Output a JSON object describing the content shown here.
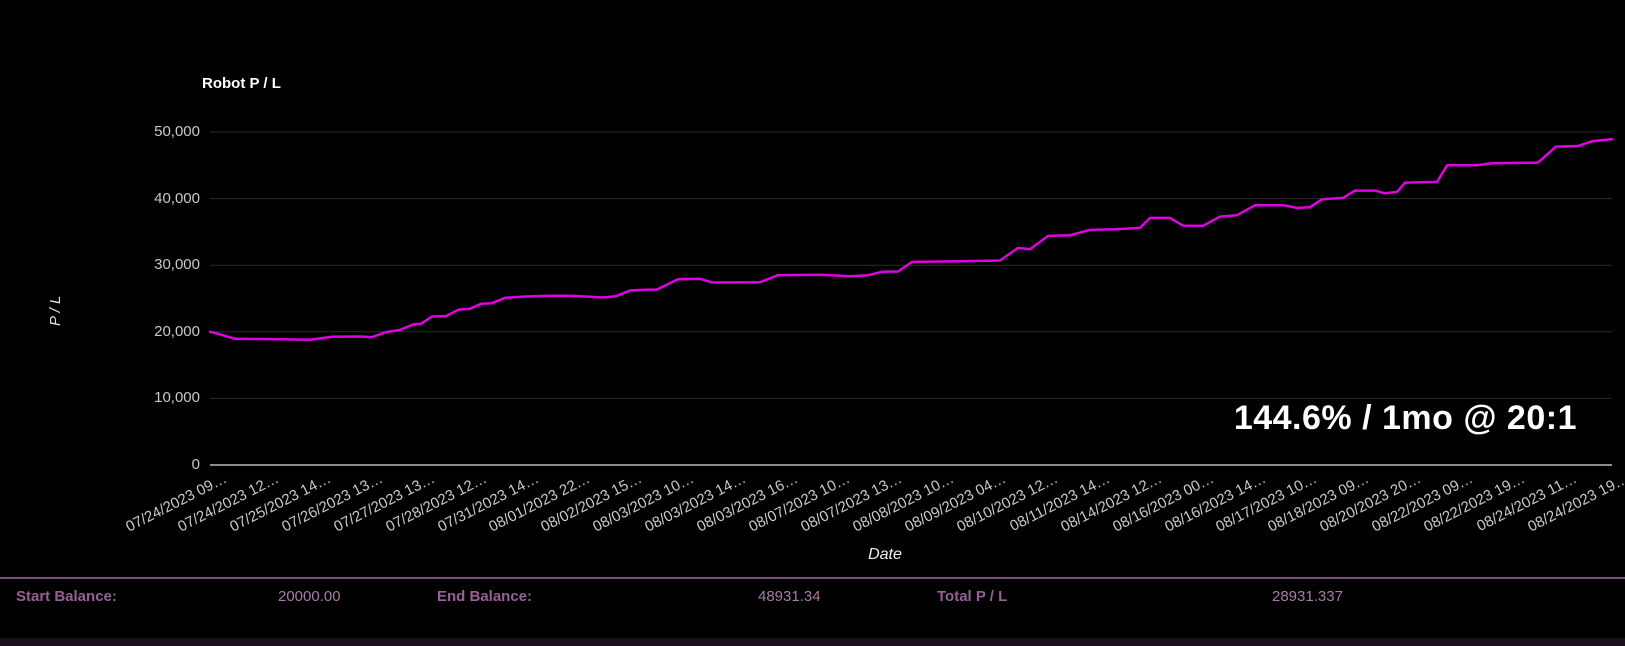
{
  "chart": {
    "title": "Robot P / L",
    "ylabel": "P / L",
    "xlabel": "Date",
    "annotation": "144.6% / 1mo @ 20:1"
  },
  "chart_data": {
    "type": "line",
    "title": "Robot P / L",
    "xlabel": "Date",
    "ylabel": "P / L",
    "annotation": "144.6% / 1mo @ 20:1",
    "grid": true,
    "legend": false,
    "ylim": [
      0,
      53300
    ],
    "yticks": [
      0,
      10000,
      20000,
      30000,
      40000,
      50000
    ],
    "ytick_labels": [
      "0",
      "10,000",
      "20,000",
      "30,000",
      "40,000",
      "50,000"
    ],
    "xtick_labels": [
      "07/24/2023 09…",
      "07/24/2023 12…",
      "07/25/2023 14…",
      "07/26/2023 13…",
      "07/27/2023 13…",
      "07/28/2023 12…",
      "07/31/2023 14…",
      "08/01/2023 22…",
      "08/02/2023 15…",
      "08/03/2023 10…",
      "08/03/2023 14…",
      "08/03/2023 16…",
      "08/07/2023 10…",
      "08/07/2023 13…",
      "08/08/2023 10…",
      "08/09/2023 04…",
      "08/10/2023 12…",
      "08/11/2023 14…",
      "08/14/2023 12…",
      "08/16/2023 00…",
      "08/16/2023 14…",
      "08/17/2023 10…",
      "08/18/2023 09…",
      "08/20/2023 20…",
      "08/22/2023 09…",
      "08/22/2023 19…",
      "08/24/2023 11…",
      "08/24/2023 19…"
    ],
    "series": [
      {
        "name": "Robot P / L",
        "color": "#e100e1",
        "points": [
          [
            0.0,
            20000
          ],
          [
            0.0057,
            19700
          ],
          [
            0.0178,
            18950
          ],
          [
            0.0414,
            18900
          ],
          [
            0.0713,
            18800
          ],
          [
            0.087,
            19250
          ],
          [
            0.1056,
            19300
          ],
          [
            0.1156,
            19200
          ],
          [
            0.1255,
            19950
          ],
          [
            0.1355,
            20300
          ],
          [
            0.1448,
            21100
          ],
          [
            0.1505,
            21200
          ],
          [
            0.1583,
            22300
          ],
          [
            0.1683,
            22350
          ],
          [
            0.1769,
            23300
          ],
          [
            0.1854,
            23450
          ],
          [
            0.1933,
            24200
          ],
          [
            0.2011,
            24300
          ],
          [
            0.2104,
            25100
          ],
          [
            0.2247,
            25300
          ],
          [
            0.2425,
            25400
          ],
          [
            0.2568,
            25400
          ],
          [
            0.2711,
            25250
          ],
          [
            0.2803,
            25150
          ],
          [
            0.2896,
            25350
          ],
          [
            0.2996,
            26200
          ],
          [
            0.3103,
            26300
          ],
          [
            0.3188,
            26350
          ],
          [
            0.3338,
            27900
          ],
          [
            0.3495,
            27950
          ],
          [
            0.3581,
            27400
          ],
          [
            0.3923,
            27450
          ],
          [
            0.4051,
            28500
          ],
          [
            0.4351,
            28550
          ],
          [
            0.4565,
            28350
          ],
          [
            0.4693,
            28500
          ],
          [
            0.4793,
            29000
          ],
          [
            0.4907,
            29050
          ],
          [
            0.5007,
            30500
          ],
          [
            0.5349,
            30600
          ],
          [
            0.5635,
            30700
          ],
          [
            0.5763,
            32600
          ],
          [
            0.5849,
            32400
          ],
          [
            0.5977,
            34400
          ],
          [
            0.6134,
            34500
          ],
          [
            0.6277,
            35300
          ],
          [
            0.6455,
            35400
          ],
          [
            0.6633,
            35600
          ],
          [
            0.6705,
            37100
          ],
          [
            0.6847,
            37100
          ],
          [
            0.694,
            35950
          ],
          [
            0.7083,
            35900
          ],
          [
            0.7204,
            37300
          ],
          [
            0.7325,
            37500
          ],
          [
            0.7454,
            39000
          ],
          [
            0.7653,
            39000
          ],
          [
            0.7753,
            38600
          ],
          [
            0.7846,
            38700
          ],
          [
            0.7932,
            39900
          ],
          [
            0.8081,
            40100
          ],
          [
            0.8167,
            41200
          ],
          [
            0.831,
            41200
          ],
          [
            0.8381,
            40800
          ],
          [
            0.8467,
            41000
          ],
          [
            0.8524,
            42400
          ],
          [
            0.8752,
            42500
          ],
          [
            0.8824,
            45000
          ],
          [
            0.9038,
            45000
          ],
          [
            0.9145,
            45300
          ],
          [
            0.9472,
            45400
          ],
          [
            0.9601,
            47800
          ],
          [
            0.9758,
            47900
          ],
          [
            0.9857,
            48600
          ],
          [
            1.0,
            48931
          ]
        ]
      }
    ]
  },
  "colors": {
    "background": "#000000",
    "series_line": "#e100e1",
    "gridline": "#2b2b2b",
    "zero_axis_line": "#8c8c8c",
    "tick_text": "#c9c9c9",
    "footer_rule": "#7c4e7c",
    "footer_label": "#976097",
    "footer_value": "#a77ba7"
  },
  "footer": {
    "items": [
      {
        "label": "Start Balance:",
        "value": "20000.00"
      },
      {
        "label": "End Balance:",
        "value": "48931.34"
      },
      {
        "label": "Total P / L",
        "value": "28931.337"
      }
    ]
  }
}
